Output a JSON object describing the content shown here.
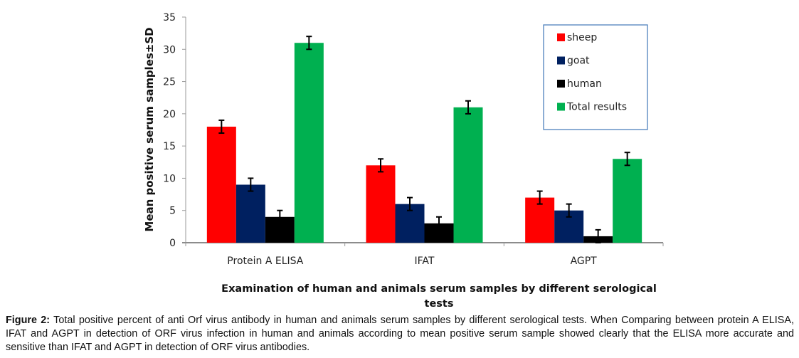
{
  "chart_data": {
    "type": "bar",
    "title": "",
    "xlabel": "Examination of human and animals serum samples by different serological tests",
    "ylabel": "Mean positive serum samples±SD",
    "ylim": [
      0,
      35
    ],
    "yticks": [
      0,
      5,
      10,
      15,
      20,
      25,
      30,
      35
    ],
    "categories": [
      "Protein A ELISA",
      "IFAT",
      "AGPT"
    ],
    "series": [
      {
        "name": "sheep",
        "color": "#ff0000",
        "values": [
          18,
          12,
          7
        ],
        "error": [
          1,
          1,
          1
        ]
      },
      {
        "name": "goat",
        "color": "#002060",
        "values": [
          9,
          6,
          5
        ],
        "error": [
          1,
          1,
          1
        ]
      },
      {
        "name": "human",
        "color": "#000000",
        "values": [
          4,
          3,
          1
        ],
        "error": [
          1,
          1,
          1
        ]
      },
      {
        "name": "Total results",
        "color": "#00b050",
        "values": [
          31,
          21,
          13
        ],
        "error": [
          1,
          1,
          1
        ]
      }
    ],
    "legend_position": "top-right",
    "grid": false
  },
  "caption": {
    "label": "Figure 2:",
    "text": " Total positive percent of anti Orf virus antibody in human and animals serum samples by different serological tests. When Comparing between protein A ELISA, IFAT and AGPT in detection of ORF virus infection in human  and animals  according to mean positive serum sample showed clearly that the ELISA more accurate and sensitive than IFAT and AGPT in detection of ORF virus antibodies."
  }
}
